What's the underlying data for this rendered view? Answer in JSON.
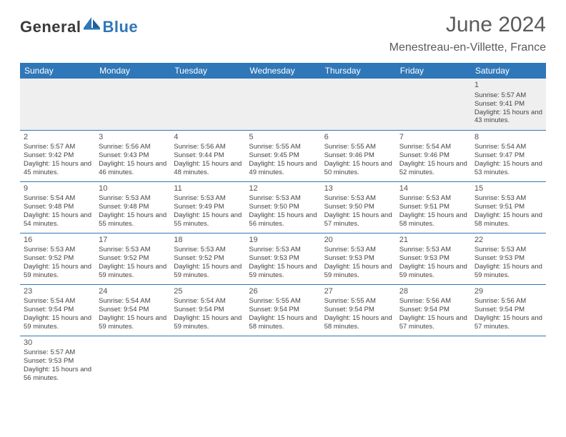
{
  "logo": {
    "part1": "General",
    "part2": "Blue"
  },
  "title": "June 2024",
  "location": "Menestreau-en-Villette, France",
  "colors": {
    "header_bg": "#2f77b8",
    "header_text": "#ffffff",
    "rule": "#2f77b8",
    "title_text": "#5a5a5a",
    "body_text": "#444444",
    "first_row_bg": "#efefef"
  },
  "day_headers": [
    "Sunday",
    "Monday",
    "Tuesday",
    "Wednesday",
    "Thursday",
    "Friday",
    "Saturday"
  ],
  "first_weekday_index": 6,
  "days": [
    {
      "n": 1,
      "sunrise": "5:57 AM",
      "sunset": "9:41 PM",
      "daylight": "15 hours and 43 minutes."
    },
    {
      "n": 2,
      "sunrise": "5:57 AM",
      "sunset": "9:42 PM",
      "daylight": "15 hours and 45 minutes."
    },
    {
      "n": 3,
      "sunrise": "5:56 AM",
      "sunset": "9:43 PM",
      "daylight": "15 hours and 46 minutes."
    },
    {
      "n": 4,
      "sunrise": "5:56 AM",
      "sunset": "9:44 PM",
      "daylight": "15 hours and 48 minutes."
    },
    {
      "n": 5,
      "sunrise": "5:55 AM",
      "sunset": "9:45 PM",
      "daylight": "15 hours and 49 minutes."
    },
    {
      "n": 6,
      "sunrise": "5:55 AM",
      "sunset": "9:46 PM",
      "daylight": "15 hours and 50 minutes."
    },
    {
      "n": 7,
      "sunrise": "5:54 AM",
      "sunset": "9:46 PM",
      "daylight": "15 hours and 52 minutes."
    },
    {
      "n": 8,
      "sunrise": "5:54 AM",
      "sunset": "9:47 PM",
      "daylight": "15 hours and 53 minutes."
    },
    {
      "n": 9,
      "sunrise": "5:54 AM",
      "sunset": "9:48 PM",
      "daylight": "15 hours and 54 minutes."
    },
    {
      "n": 10,
      "sunrise": "5:53 AM",
      "sunset": "9:48 PM",
      "daylight": "15 hours and 55 minutes."
    },
    {
      "n": 11,
      "sunrise": "5:53 AM",
      "sunset": "9:49 PM",
      "daylight": "15 hours and 55 minutes."
    },
    {
      "n": 12,
      "sunrise": "5:53 AM",
      "sunset": "9:50 PM",
      "daylight": "15 hours and 56 minutes."
    },
    {
      "n": 13,
      "sunrise": "5:53 AM",
      "sunset": "9:50 PM",
      "daylight": "15 hours and 57 minutes."
    },
    {
      "n": 14,
      "sunrise": "5:53 AM",
      "sunset": "9:51 PM",
      "daylight": "15 hours and 58 minutes."
    },
    {
      "n": 15,
      "sunrise": "5:53 AM",
      "sunset": "9:51 PM",
      "daylight": "15 hours and 58 minutes."
    },
    {
      "n": 16,
      "sunrise": "5:53 AM",
      "sunset": "9:52 PM",
      "daylight": "15 hours and 59 minutes."
    },
    {
      "n": 17,
      "sunrise": "5:53 AM",
      "sunset": "9:52 PM",
      "daylight": "15 hours and 59 minutes."
    },
    {
      "n": 18,
      "sunrise": "5:53 AM",
      "sunset": "9:52 PM",
      "daylight": "15 hours and 59 minutes."
    },
    {
      "n": 19,
      "sunrise": "5:53 AM",
      "sunset": "9:53 PM",
      "daylight": "15 hours and 59 minutes."
    },
    {
      "n": 20,
      "sunrise": "5:53 AM",
      "sunset": "9:53 PM",
      "daylight": "15 hours and 59 minutes."
    },
    {
      "n": 21,
      "sunrise": "5:53 AM",
      "sunset": "9:53 PM",
      "daylight": "15 hours and 59 minutes."
    },
    {
      "n": 22,
      "sunrise": "5:53 AM",
      "sunset": "9:53 PM",
      "daylight": "15 hours and 59 minutes."
    },
    {
      "n": 23,
      "sunrise": "5:54 AM",
      "sunset": "9:54 PM",
      "daylight": "15 hours and 59 minutes."
    },
    {
      "n": 24,
      "sunrise": "5:54 AM",
      "sunset": "9:54 PM",
      "daylight": "15 hours and 59 minutes."
    },
    {
      "n": 25,
      "sunrise": "5:54 AM",
      "sunset": "9:54 PM",
      "daylight": "15 hours and 59 minutes."
    },
    {
      "n": 26,
      "sunrise": "5:55 AM",
      "sunset": "9:54 PM",
      "daylight": "15 hours and 58 minutes."
    },
    {
      "n": 27,
      "sunrise": "5:55 AM",
      "sunset": "9:54 PM",
      "daylight": "15 hours and 58 minutes."
    },
    {
      "n": 28,
      "sunrise": "5:56 AM",
      "sunset": "9:54 PM",
      "daylight": "15 hours and 57 minutes."
    },
    {
      "n": 29,
      "sunrise": "5:56 AM",
      "sunset": "9:54 PM",
      "daylight": "15 hours and 57 minutes."
    },
    {
      "n": 30,
      "sunrise": "5:57 AM",
      "sunset": "9:53 PM",
      "daylight": "15 hours and 56 minutes."
    }
  ],
  "labels": {
    "sunrise": "Sunrise:",
    "sunset": "Sunset:",
    "daylight": "Daylight:"
  }
}
